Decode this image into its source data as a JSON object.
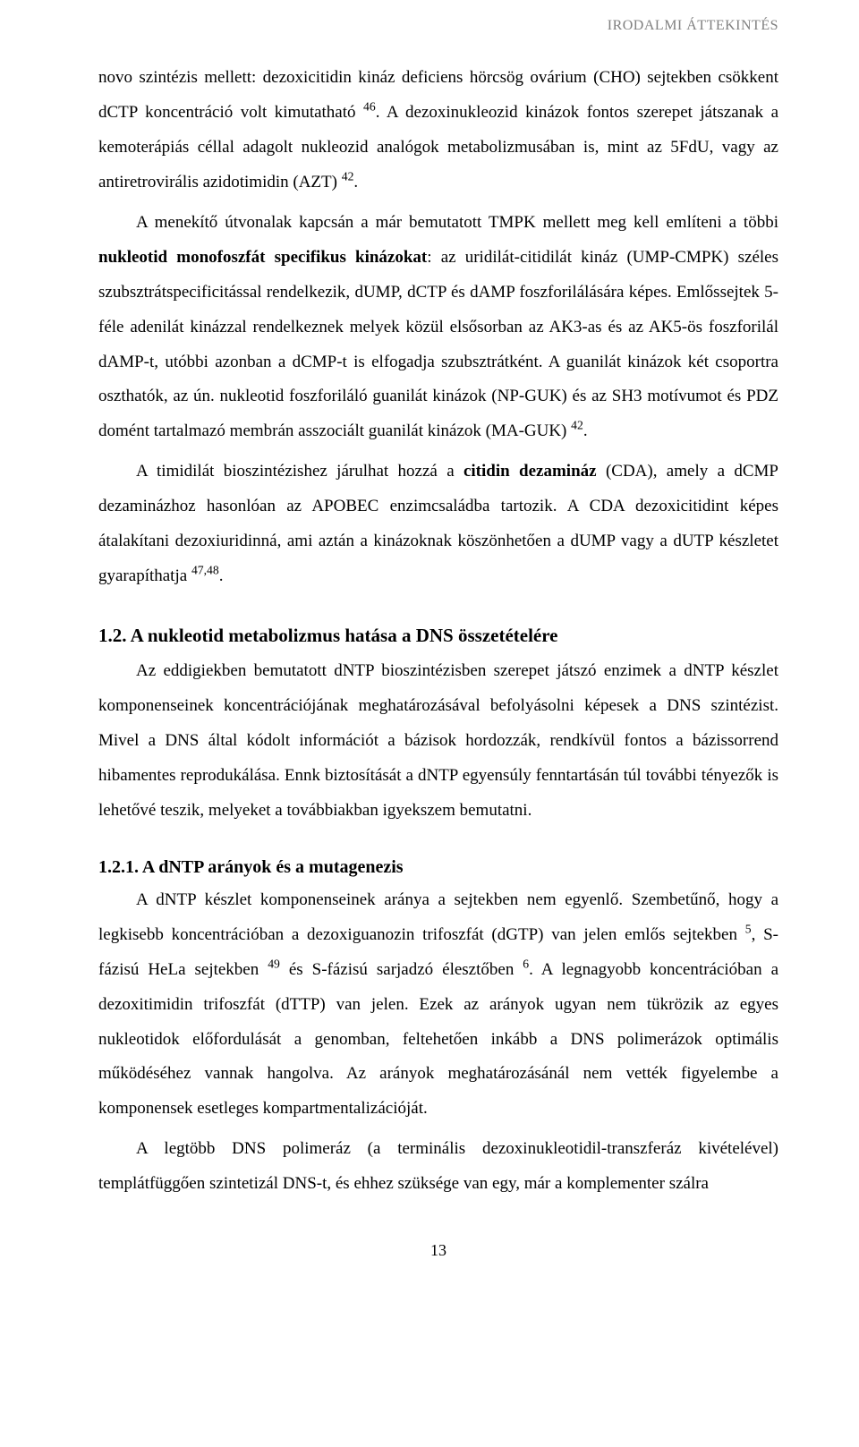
{
  "header": {
    "label": "IRODALMI ÁTTEKINTÉS"
  },
  "para1": {
    "t1": "novo szintézis mellett: dezoxicitidin kináz deficiens hörcsög ovárium (CHO) sejtekben csökkent dCTP koncentráció volt kimutatható ",
    "s1": "46",
    "t2": ". A dezoxinukleozid kinázok fontos szerepet játszanak a kemoterápiás céllal adagolt nukleozid analógok metabolizmusában is, mint az 5FdU, vagy az antiretrovirális azidotimidin (AZT) ",
    "s2": "42",
    "t3": "."
  },
  "para2": {
    "t1": "A menekítő útvonalak kapcsán a már bemutatott TMPK mellett meg kell említeni a többi ",
    "b1": "nukleotid monofoszfát specifikus kinázokat",
    "t2": ": az uridilát-citidilát kináz (UMP-CMPK) széles szubsztrátspecificitással rendelkezik, dUMP, dCTP és dAMP foszforilálására képes. Emlőssejtek 5-féle adenilát kinázzal rendelkeznek melyek közül elsősorban az AK3-as és az AK5-ös foszforilál dAMP-t, utóbbi azonban a dCMP-t is elfogadja szubsztrátként. A guanilát kinázok két csoportra oszthatók, az ún. nukleotid foszforiláló guanilát kinázok (NP-GUK) és az SH3 motívumot és PDZ domént tartalmazó membrán asszociált guanilát kinázok (MA-GUK) ",
    "s1": "42",
    "t3": "."
  },
  "para3": {
    "t1": "A timidilát bioszintézishez járulhat hozzá a ",
    "b1": "citidin dezamináz",
    "t2": " (CDA), amely a dCMP dezaminázhoz hasonlóan az APOBEC enzimcsaládba tartozik. A CDA dezoxicitidint képes átalakítani dezoxiuridinná, ami aztán a kinázoknak köszönhetően a dUMP vagy a dUTP készletet gyarapíthatja ",
    "s1": "47,48",
    "t3": "."
  },
  "section12": {
    "heading": "1.2. A nukleotid metabolizmus hatása a DNS összetételére",
    "body": "Az eddigiekben bemutatott dNTP bioszintézisben szerepet játszó enzimek a dNTP készlet komponenseinek koncentrációjának meghatározásával befolyásolni képesek a DNS szintézist. Mivel a DNS által kódolt információt a bázisok hordozzák, rendkívül fontos a bázissorrend hibamentes reprodukálása. Ennk biztosítását a dNTP egyensúly fenntartásán túl további tényezők is lehetővé teszik, melyeket a továbbiakban igyekszem bemutatni."
  },
  "section121": {
    "heading": "1.2.1. A dNTP arányok és a mutagenezis",
    "p1": {
      "t1": "A dNTP készlet komponenseinek aránya a sejtekben nem egyenlő. Szembetűnő, hogy a legkisebb koncentrációban a dezoxiguanozin trifoszfát (dGTP) van jelen emlős sejtekben ",
      "s1": "5",
      "t2": ", S-fázisú HeLa sejtekben ",
      "s2": "49",
      "t3": " és S-fázisú sarjadzó élesztőben ",
      "s3": "6",
      "t4": ". A legnagyobb koncentrációban a dezoxitimidin trifoszfát (dTTP) van jelen. Ezek az arányok ugyan nem tükrözik az egyes nukleotidok előfordulását a genomban, feltehetően inkább a DNS polimerázok optimális működéséhez vannak hangolva. Az arányok meghatározásánál nem vették figyelembe a komponensek esetleges kompartmentalizációját."
    },
    "p2": "A legtöbb DNS polimeráz (a terminális dezoxinukleotidil-transzferáz kivételével) templátfüggően szintetizál DNS-t, és ehhez szüksége van egy, már a komplementer szálra"
  },
  "pageNumber": "13"
}
